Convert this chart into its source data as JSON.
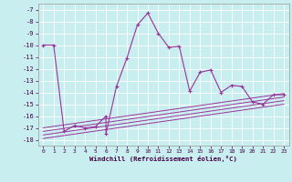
{
  "xlabel": "Windchill (Refroidissement éolien,°C)",
  "background_color": "#c8eef0",
  "grid_color": "#ffffff",
  "line_color": "#993399",
  "xlim": [
    -0.5,
    23.5
  ],
  "ylim": [
    -18.5,
    -6.5
  ],
  "xticks": [
    0,
    1,
    2,
    3,
    4,
    5,
    6,
    7,
    8,
    9,
    10,
    11,
    12,
    13,
    14,
    15,
    16,
    17,
    18,
    19,
    20,
    21,
    22,
    23
  ],
  "yticks": [
    -18,
    -17,
    -16,
    -15,
    -14,
    -13,
    -12,
    -11,
    -10,
    -9,
    -8,
    -7
  ],
  "series": [
    [
      0,
      -10.0
    ],
    [
      1,
      -10.0
    ],
    [
      2,
      -17.3
    ],
    [
      3,
      -16.8
    ],
    [
      4,
      -17.0
    ],
    [
      5,
      -16.9
    ],
    [
      6,
      -16.0
    ],
    [
      6,
      -17.5
    ],
    [
      7,
      -13.5
    ],
    [
      8,
      -11.1
    ],
    [
      9,
      -8.3
    ],
    [
      10,
      -7.3
    ],
    [
      11,
      -9.0
    ],
    [
      12,
      -10.2
    ],
    [
      13,
      -10.1
    ],
    [
      14,
      -13.9
    ],
    [
      15,
      -12.3
    ],
    [
      16,
      -12.1
    ],
    [
      17,
      -14.0
    ],
    [
      18,
      -13.4
    ],
    [
      19,
      -13.5
    ],
    [
      20,
      -14.8
    ],
    [
      21,
      -15.0
    ],
    [
      22,
      -14.2
    ],
    [
      23,
      -14.2
    ]
  ],
  "lines": [
    {
      "x": [
        0,
        23
      ],
      "y": [
        -17.0,
        -14.1
      ]
    },
    {
      "x": [
        0,
        23
      ],
      "y": [
        -17.3,
        -14.4
      ]
    },
    {
      "x": [
        0,
        23
      ],
      "y": [
        -17.6,
        -14.7
      ]
    },
    {
      "x": [
        0,
        23
      ],
      "y": [
        -17.9,
        -15.0
      ]
    }
  ]
}
